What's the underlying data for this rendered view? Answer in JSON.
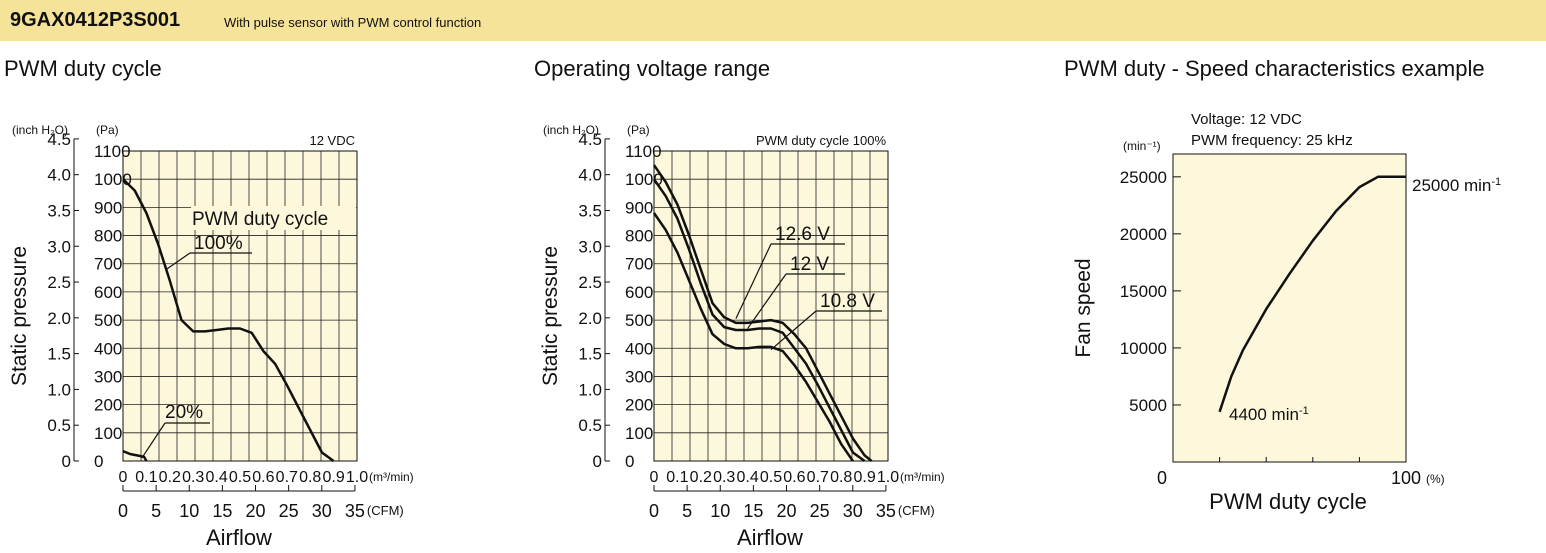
{
  "header": {
    "model": "9GAX0412P3S001",
    "description": "With pulse sensor with PWM control function"
  },
  "chart_data": [
    {
      "type": "line",
      "title": "PWM duty cycle",
      "condition_note": "12 VDC",
      "ylabel": "Static pressure",
      "ylabel_left_unit": "(inch H₂O)",
      "ylabel_right_unit": "(Pa)",
      "xlabel": "Airflow",
      "x_unit_top": "(m³/min)",
      "x_unit_bottom": "(CFM)",
      "x_ticks_m3min": [
        "0",
        "0.1",
        "0.2",
        "0.3",
        "0.4",
        "0.5",
        "0.6",
        "0.7",
        "0.8",
        "0.9",
        "1.0"
      ],
      "x_ticks_cfm": [
        "0",
        "5",
        "10",
        "15",
        "20",
        "25",
        "30",
        "35"
      ],
      "y_ticks_pa": [
        "0",
        "100",
        "200",
        "300",
        "400",
        "500",
        "600",
        "700",
        "800",
        "900",
        "1000",
        "1100"
      ],
      "y_ticks_inh2o": [
        "0",
        "0.5",
        "1.0",
        "1.5",
        "2.0",
        "2.5",
        "3.0",
        "3.5",
        "4.0",
        "4.5"
      ],
      "xlim": [
        0,
        1.0
      ],
      "ylim": [
        0,
        1100
      ],
      "grid": true,
      "series_label": "PWM duty cycle",
      "series": [
        {
          "name": "100%",
          "x": [
            0,
            0.05,
            0.1,
            0.15,
            0.2,
            0.25,
            0.3,
            0.35,
            0.4,
            0.45,
            0.5,
            0.55,
            0.6,
            0.65,
            0.7,
            0.75,
            0.8,
            0.85,
            0.9
          ],
          "y": [
            1000,
            960,
            880,
            770,
            640,
            500,
            460,
            460,
            465,
            470,
            470,
            455,
            390,
            345,
            270,
            190,
            110,
            30,
            0
          ]
        },
        {
          "name": "20%",
          "x": [
            0,
            0.03,
            0.06,
            0.09,
            0.1
          ],
          "y": [
            35,
            25,
            20,
            15,
            0
          ]
        }
      ]
    },
    {
      "type": "line",
      "title": "Operating voltage range",
      "condition_note": "PWM duty cycle 100%",
      "ylabel": "Static pressure",
      "ylabel_left_unit": "(inch H₂O)",
      "ylabel_right_unit": "(Pa)",
      "xlabel": "Airflow",
      "x_unit_top": "(m³/min)",
      "x_unit_bottom": "(CFM)",
      "x_ticks_m3min": [
        "0",
        "0.1",
        "0.2",
        "0.3",
        "0.4",
        "0.5",
        "0.6",
        "0.7",
        "0.8",
        "0.9",
        "1.0"
      ],
      "x_ticks_cfm": [
        "0",
        "5",
        "10",
        "15",
        "20",
        "25",
        "30",
        "35"
      ],
      "y_ticks_pa": [
        "0",
        "100",
        "200",
        "300",
        "400",
        "500",
        "600",
        "700",
        "800",
        "900",
        "1000",
        "1100"
      ],
      "y_ticks_inh2o": [
        "0",
        "0.5",
        "1.0",
        "1.5",
        "2.0",
        "2.5",
        "3.0",
        "3.5",
        "4.0",
        "4.5"
      ],
      "xlim": [
        0,
        1.0
      ],
      "ylim": [
        0,
        1100
      ],
      "grid": true,
      "series": [
        {
          "name": "12.6 V",
          "x": [
            0,
            0.05,
            0.1,
            0.15,
            0.2,
            0.25,
            0.3,
            0.35,
            0.4,
            0.45,
            0.5,
            0.55,
            0.6,
            0.65,
            0.7,
            0.75,
            0.8,
            0.85,
            0.9,
            0.93
          ],
          "y": [
            1050,
            990,
            910,
            800,
            680,
            560,
            510,
            490,
            490,
            495,
            500,
            490,
            450,
            400,
            320,
            240,
            160,
            80,
            20,
            0
          ]
        },
        {
          "name": "12 V",
          "x": [
            0,
            0.05,
            0.1,
            0.15,
            0.2,
            0.25,
            0.3,
            0.35,
            0.4,
            0.45,
            0.5,
            0.55,
            0.6,
            0.65,
            0.7,
            0.75,
            0.8,
            0.85,
            0.9
          ],
          "y": [
            1000,
            940,
            860,
            750,
            630,
            520,
            475,
            465,
            465,
            470,
            470,
            455,
            400,
            345,
            270,
            190,
            110,
            30,
            0
          ]
        },
        {
          "name": "10.8 V",
          "x": [
            0,
            0.05,
            0.1,
            0.15,
            0.2,
            0.25,
            0.3,
            0.35,
            0.4,
            0.45,
            0.5,
            0.55,
            0.6,
            0.65,
            0.7,
            0.75,
            0.8,
            0.85
          ],
          "y": [
            880,
            820,
            740,
            640,
            540,
            450,
            415,
            400,
            400,
            405,
            405,
            390,
            340,
            280,
            210,
            140,
            60,
            0
          ]
        }
      ]
    },
    {
      "type": "line",
      "title": "PWM duty - Speed characteristics example",
      "conditions": [
        "Voltage: 12 VDC",
        "PWM frequency: 25 kHz"
      ],
      "ylabel": "Fan speed",
      "y_unit": "(min⁻¹)",
      "xlabel": "PWM duty cycle",
      "x_unit": "(%)",
      "x_ticks": [
        "0",
        "100"
      ],
      "y_ticks": [
        "5000",
        "10000",
        "15000",
        "20000",
        "25000"
      ],
      "xlim": [
        0,
        100
      ],
      "ylim": [
        0,
        27000
      ],
      "grid": false,
      "annotations": [
        {
          "text": "25000 min",
          "sup": "-1"
        },
        {
          "text": "4400 min",
          "sup": "-1"
        }
      ],
      "series": [
        {
          "name": "",
          "x": [
            20,
            25,
            30,
            40,
            50,
            60,
            70,
            80,
            88,
            92,
            100
          ],
          "y": [
            4400,
            7500,
            9800,
            13400,
            16500,
            19400,
            22000,
            24100,
            25000,
            25000,
            25000
          ]
        }
      ]
    }
  ]
}
